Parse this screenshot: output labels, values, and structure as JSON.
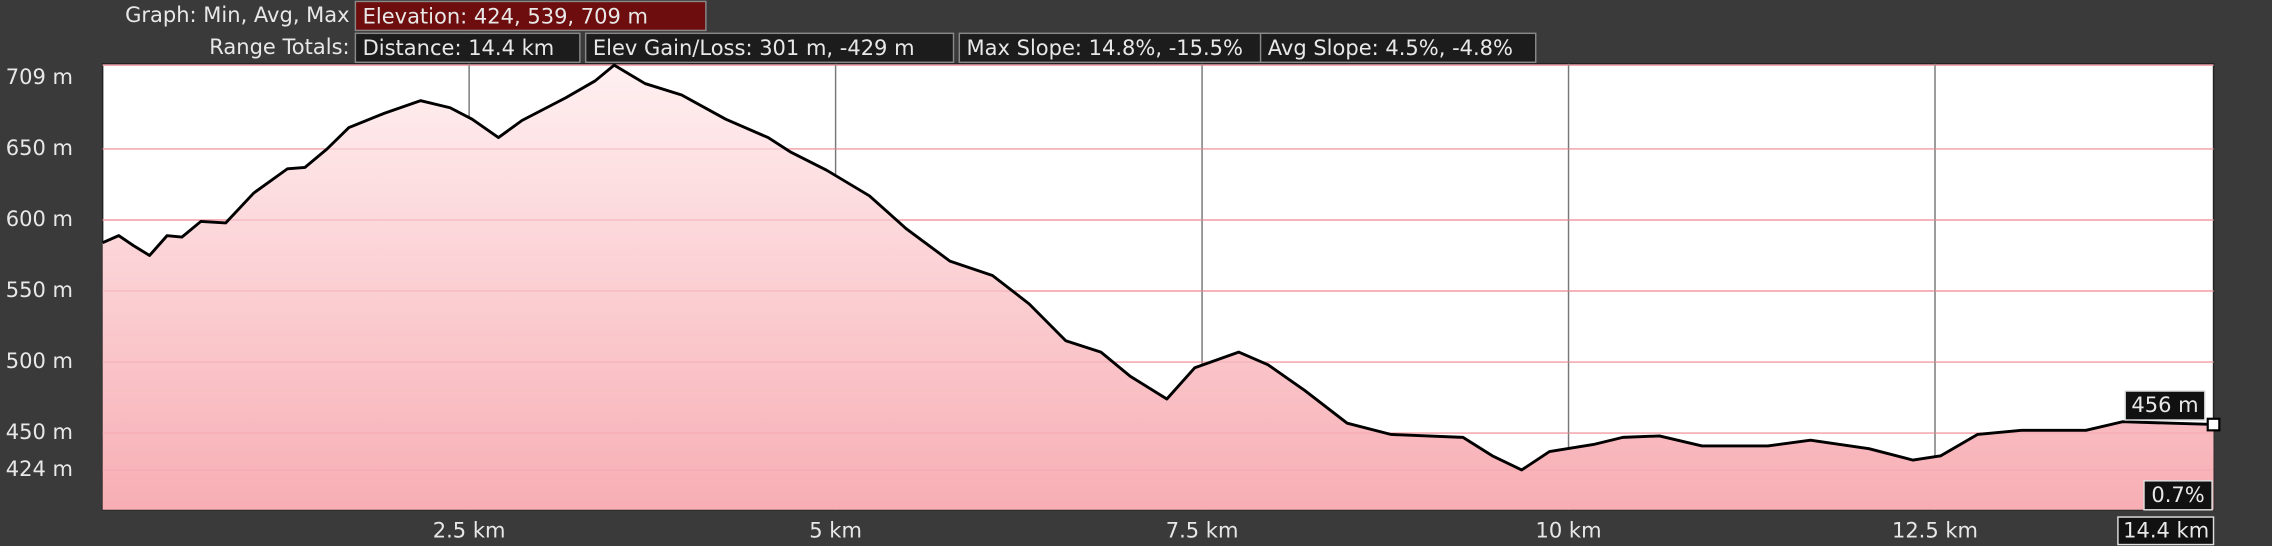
{
  "chart_data": {
    "type": "area",
    "header": [
      [
        "Graph: Min, Avg, Max",
        "Elevation: 424, 539, 709 m"
      ],
      [
        "Range Totals:",
        "Distance: 14.4 km",
        "Elev Gain/Loss: 301 m, -429 m",
        "Max Slope: 14.8%, -15.5%",
        "Avg Slope: 4.5%, -4.8%"
      ]
    ],
    "x": [
      0,
      0.11,
      0.21,
      0.32,
      0.44,
      0.54,
      0.67,
      0.84,
      1.03,
      1.26,
      1.38,
      1.53,
      1.68,
      1.92,
      2.17,
      2.37,
      2.52,
      2.7,
      2.86,
      3.16,
      3.36,
      3.49,
      3.7,
      3.95,
      4.25,
      4.54,
      4.69,
      4.94,
      5.23,
      5.48,
      5.78,
      6.07,
      6.32,
      6.57,
      6.81,
      7.01,
      7.26,
      7.45,
      7.75,
      7.95,
      8.2,
      8.49,
      8.79,
      9.28,
      9.48,
      9.68,
      9.87,
      10.17,
      10.37,
      10.62,
      10.91,
      11.36,
      11.65,
      12.05,
      12.35,
      12.54,
      12.79,
      13.09,
      13.53,
      13.78,
      14.4
    ],
    "values": [
      584,
      589,
      582,
      575,
      589,
      588,
      599,
      598,
      619,
      636,
      637,
      650,
      665,
      675,
      684,
      679,
      671,
      658,
      670,
      686,
      698,
      709,
      696,
      688,
      671,
      658,
      648,
      635,
      617,
      594,
      571,
      561,
      541,
      515,
      507,
      490,
      474,
      496,
      507,
      498,
      480,
      457,
      449,
      447,
      434,
      424,
      437,
      442,
      447,
      448,
      441,
      441,
      445,
      439,
      431,
      434,
      449,
      452,
      452,
      458,
      456
    ],
    "color": "#000000",
    "xlim": [
      0,
      14.4
    ],
    "ylim": [
      396,
      710
    ],
    "xticks": [
      {
        "value": 2.5,
        "label": "2.5 km"
      },
      {
        "value": 5,
        "label": "5 km"
      },
      {
        "value": 7.5,
        "label": "7.5 km"
      },
      {
        "value": 10,
        "label": "10 km"
      },
      {
        "value": 12.5,
        "label": "12.5 km"
      },
      {
        "value": 14.4,
        "label": "14.4 km"
      }
    ],
    "yticks": [
      {
        "value": 424,
        "label": "424 m"
      },
      {
        "value": 450,
        "label": "450 m"
      },
      {
        "value": 500,
        "label": "500 m"
      },
      {
        "value": 550,
        "label": "550 m"
      },
      {
        "value": 600,
        "label": "600 m"
      },
      {
        "value": 650,
        "label": "650 m"
      },
      {
        "value": 709,
        "label": "709 m"
      }
    ],
    "grid": true,
    "annotations": [
      "456 m",
      "0.7%"
    ]
  }
}
